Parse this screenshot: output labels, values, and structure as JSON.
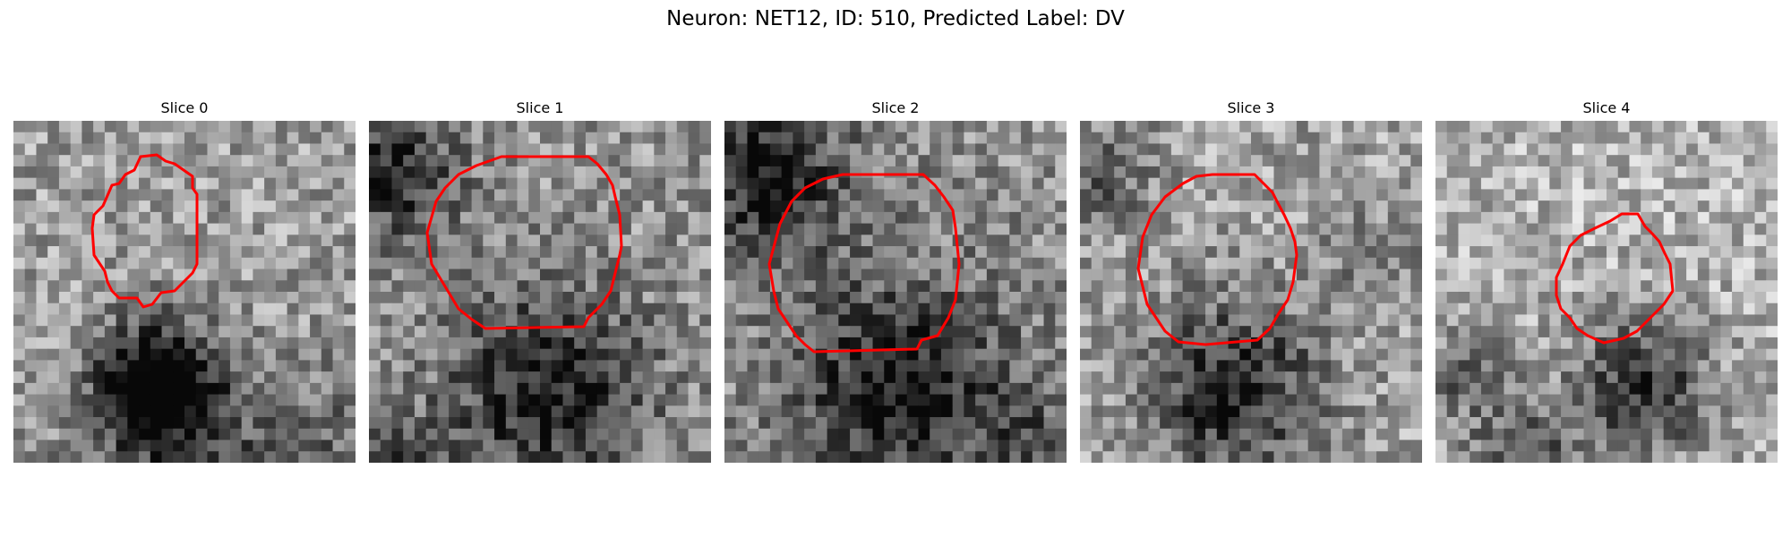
{
  "figure": {
    "title": "Neuron: NET12, ID: 510, Predicted Label: DV",
    "panels": [
      {
        "title": "Slice 0",
        "contour_color": "#ff0000"
      },
      {
        "title": "Slice 1",
        "contour_color": "#ff0000"
      },
      {
        "title": "Slice 2",
        "contour_color": "#ff0000"
      },
      {
        "title": "Slice 3",
        "contour_color": "#ff0000"
      },
      {
        "title": "Slice 4",
        "contour_color": "#ff0000"
      }
    ]
  }
}
